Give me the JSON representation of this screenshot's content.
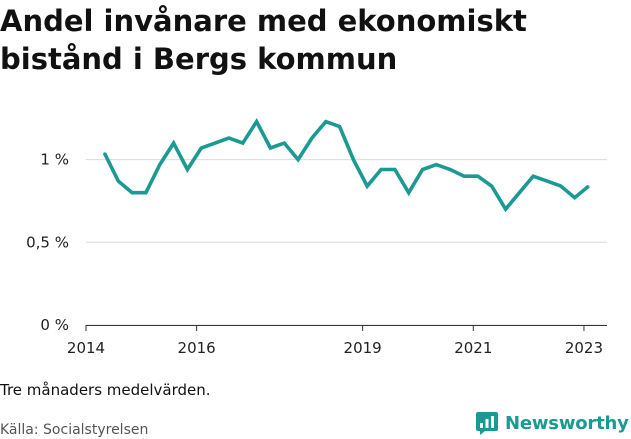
{
  "title_lines": [
    "Andel invånare med ekonomiskt",
    "bistånd i Bergs kommun"
  ],
  "note": "Tre månaders medelvärden.",
  "source": "Källa: Socialstyrelsen",
  "brand": {
    "name": "Newsworthy",
    "color": "#1a9a92"
  },
  "chart_data": {
    "type": "line",
    "title": "Andel invånare med ekonomiskt bistånd i Bergs kommun",
    "xlabel": "",
    "ylabel": "",
    "x_ticks": [
      "2014",
      "2016",
      "2019",
      "2021",
      "2023"
    ],
    "y_ticks": [
      "0 %",
      "0,5 %",
      "1 %"
    ],
    "y_tick_values": [
      0,
      0.5,
      1.0
    ],
    "ylim": [
      0,
      1.3
    ],
    "xlim": [
      "2014-01",
      "2023-06"
    ],
    "grid": true,
    "series": [
      {
        "color": "#1a9a92",
        "points": [
          [
            "2014-05",
            1.04
          ],
          [
            "2014-08",
            0.87
          ],
          [
            "2014-11",
            0.8
          ],
          [
            "2015-02",
            0.8
          ],
          [
            "2015-05",
            0.97
          ],
          [
            "2015-08",
            1.1
          ],
          [
            "2015-11",
            0.94
          ],
          [
            "2016-02",
            1.07
          ],
          [
            "2016-05",
            1.1
          ],
          [
            "2016-08",
            1.13
          ],
          [
            "2016-11",
            1.1
          ],
          [
            "2017-02",
            1.23
          ],
          [
            "2017-05",
            1.07
          ],
          [
            "2017-08",
            1.1
          ],
          [
            "2017-11",
            1.0
          ],
          [
            "2018-02",
            1.13
          ],
          [
            "2018-05",
            1.23
          ],
          [
            "2018-08",
            1.2
          ],
          [
            "2018-11",
            1.0
          ],
          [
            "2019-02",
            0.84
          ],
          [
            "2019-05",
            0.94
          ],
          [
            "2019-08",
            0.94
          ],
          [
            "2019-11",
            0.8
          ],
          [
            "2020-02",
            0.94
          ],
          [
            "2020-05",
            0.97
          ],
          [
            "2020-08",
            0.94
          ],
          [
            "2020-11",
            0.9
          ],
          [
            "2021-02",
            0.9
          ],
          [
            "2021-05",
            0.84
          ],
          [
            "2021-08",
            0.7
          ],
          [
            "2021-11",
            0.8
          ],
          [
            "2022-02",
            0.9
          ],
          [
            "2022-05",
            0.87
          ],
          [
            "2022-08",
            0.84
          ],
          [
            "2022-11",
            0.77
          ],
          [
            "2023-02",
            0.84
          ]
        ]
      }
    ]
  }
}
